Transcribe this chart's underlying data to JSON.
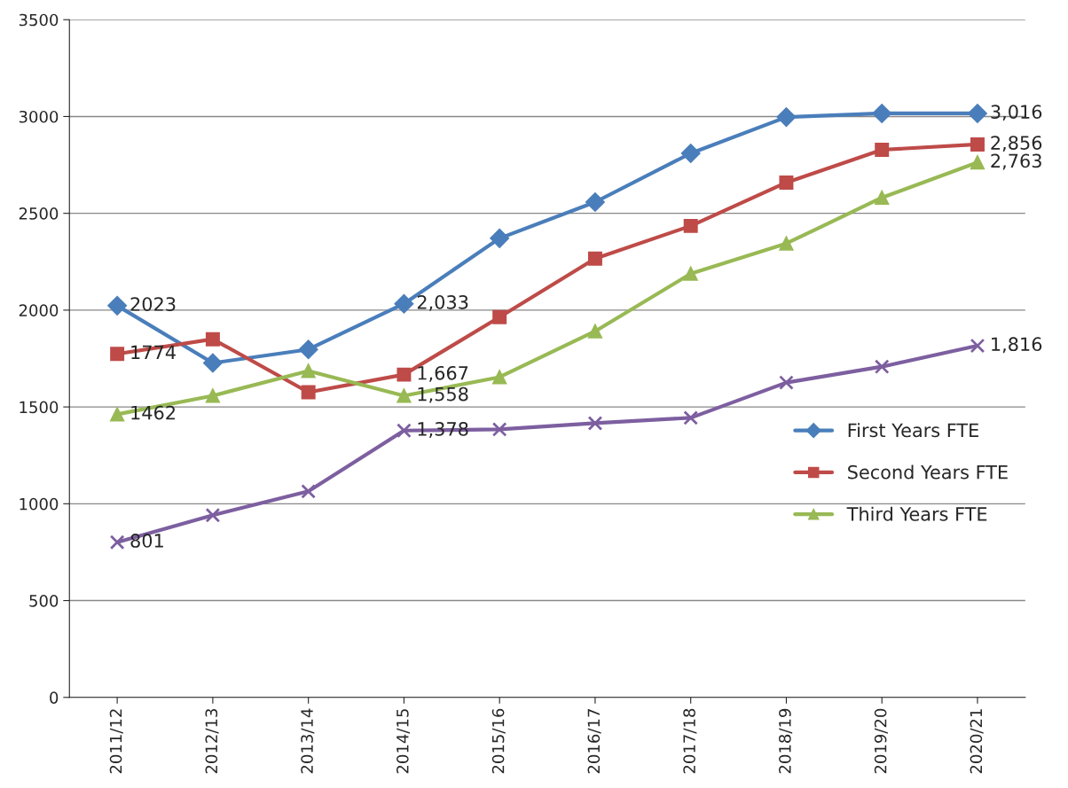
{
  "chart_data": {
    "type": "line",
    "categories": [
      "2011/12",
      "2012/13",
      "2013/14",
      "2014/15",
      "2015/16",
      "2016/17",
      "2017/18",
      "2018/19",
      "2019/20",
      "2020/21"
    ],
    "series": [
      {
        "name": "First Years FTE",
        "color": "#4a7ebb",
        "marker": "diamond",
        "values": [
          2023,
          1727,
          1797,
          2033,
          2371,
          2558,
          2810,
          2997,
          3016,
          3016
        ],
        "value_labels": [
          "2023",
          null,
          null,
          "2,033",
          null,
          null,
          null,
          null,
          null,
          "3,016"
        ]
      },
      {
        "name": "Second Years FTE",
        "color": "#be4b48",
        "marker": "square",
        "values": [
          1774,
          1850,
          1576,
          1667,
          1964,
          2266,
          2435,
          2659,
          2828,
          2856
        ],
        "value_labels": [
          "1774",
          null,
          null,
          "1,667",
          null,
          null,
          null,
          null,
          null,
          "2,856"
        ]
      },
      {
        "name": "Third Years FTE",
        "color": "#98b954",
        "marker": "triangle",
        "values": [
          1462,
          1558,
          1686,
          1558,
          1654,
          1891,
          2188,
          2344,
          2581,
          2763
        ],
        "value_labels": [
          "1462",
          null,
          null,
          "1,558",
          null,
          null,
          null,
          null,
          null,
          "2,763"
        ]
      },
      {
        "color": "#7d5fa0",
        "marker": "cross",
        "values": [
          801,
          941,
          1064,
          1378,
          1384,
          1416,
          1444,
          1626,
          1708,
          1816
        ],
        "value_labels": [
          "801",
          null,
          null,
          "1,378",
          null,
          null,
          null,
          null,
          null,
          "1,816"
        ]
      }
    ],
    "ylim": [
      0,
      3500
    ],
    "yticks": [
      0,
      500,
      1000,
      1500,
      2000,
      2500,
      3000,
      3500
    ],
    "grid": "y",
    "legend": "center right",
    "line_style": "solid"
  }
}
